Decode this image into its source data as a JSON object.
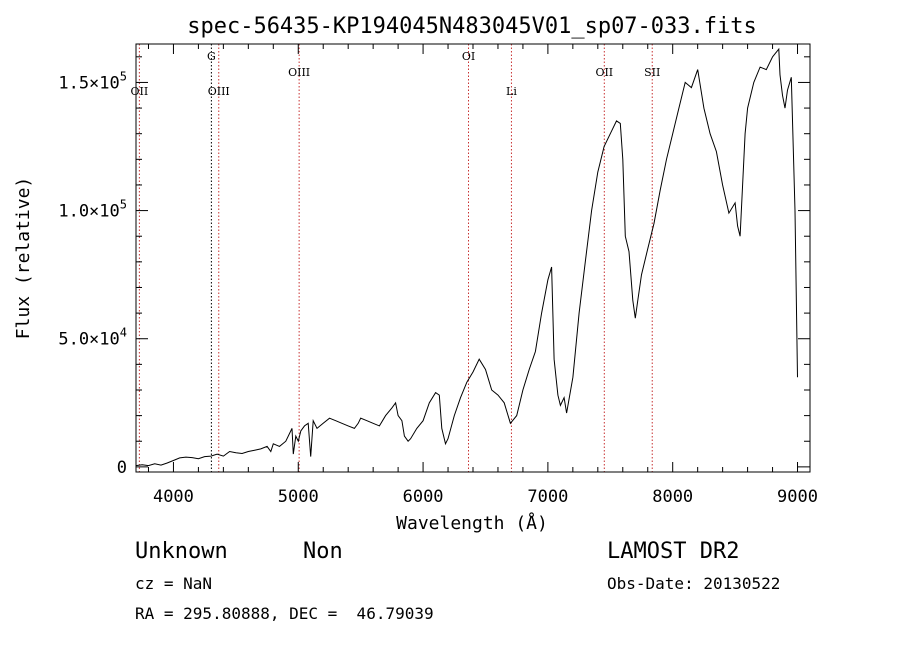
{
  "chart_data": {
    "type": "line",
    "title": "spec-56435-KP194045N483045V01_sp07-033.fits",
    "xlabel": "Wavelength (Å)",
    "ylabel": "Flux (relative)",
    "xlim": [
      3700,
      9100
    ],
    "ylim": [
      -2000,
      165000
    ],
    "x_ticks": [
      4000,
      5000,
      6000,
      7000,
      8000,
      9000
    ],
    "x_tick_labels": [
      "4000",
      "5000",
      "6000",
      "7000",
      "8000",
      "9000"
    ],
    "y_ticks": [
      0,
      50000,
      100000,
      150000
    ],
    "y_tick_labels": [
      {
        "base": "0",
        "exp": ""
      },
      {
        "base": "5.0×10",
        "exp": "4"
      },
      {
        "base": "1.0×10",
        "exp": "5"
      },
      {
        "base": "1.5×10",
        "exp": "5"
      }
    ],
    "grid": false,
    "series": [
      {
        "x": [
          3700,
          3750,
          3800,
          3850,
          3900,
          3950,
          4000,
          4050,
          4100,
          4150,
          4200,
          4250,
          4300,
          4350,
          4400,
          4450,
          4500,
          4550,
          4600,
          4650,
          4700,
          4750,
          4780,
          4800,
          4850,
          4900,
          4950,
          4960,
          4980,
          5000,
          5020,
          5050,
          5080,
          5100,
          5120,
          5150,
          5200,
          5250,
          5300,
          5350,
          5400,
          5450,
          5480,
          5500,
          5550,
          5600,
          5650,
          5700,
          5750,
          5780,
          5800,
          5830,
          5850,
          5880,
          5900,
          5950,
          6000,
          6050,
          6100,
          6130,
          6150,
          6180,
          6200,
          6250,
          6300,
          6350,
          6400,
          6450,
          6500,
          6550,
          6600,
          6650,
          6700,
          6750,
          6800,
          6850,
          6900,
          6950,
          7000,
          7030,
          7050,
          7080,
          7100,
          7130,
          7150,
          7200,
          7250,
          7300,
          7350,
          7400,
          7450,
          7500,
          7550,
          7580,
          7600,
          7620,
          7650,
          7680,
          7700,
          7720,
          7750,
          7800,
          7850,
          7900,
          7950,
          8000,
          8050,
          8100,
          8150,
          8200,
          8250,
          8300,
          8350,
          8400,
          8450,
          8500,
          8520,
          8540,
          8560,
          8580,
          8600,
          8650,
          8700,
          8750,
          8800,
          8850,
          8860,
          8880,
          8900,
          8920,
          8950,
          8980,
          9000
        ],
        "y": [
          500,
          800,
          500,
          1200,
          700,
          1500,
          2500,
          3500,
          3800,
          3600,
          3200,
          4000,
          4200,
          5000,
          4200,
          6000,
          5500,
          5200,
          6000,
          6500,
          7000,
          8000,
          6000,
          9000,
          8000,
          10000,
          15000,
          5000,
          12000,
          10000,
          14000,
          16000,
          17000,
          4000,
          18000,
          15000,
          17000,
          19000,
          18000,
          17000,
          16000,
          15000,
          17000,
          19000,
          18000,
          17000,
          16000,
          20000,
          23000,
          25000,
          20000,
          18000,
          12000,
          10000,
          11000,
          15000,
          18000,
          25000,
          29000,
          28000,
          15000,
          9000,
          11000,
          20000,
          27000,
          33000,
          37000,
          42000,
          38000,
          30000,
          28000,
          25000,
          17000,
          20000,
          30000,
          38000,
          45000,
          60000,
          73000,
          78000,
          42000,
          28000,
          24000,
          27000,
          21000,
          35000,
          60000,
          80000,
          100000,
          115000,
          125000,
          130000,
          135000,
          134000,
          120000,
          90000,
          84000,
          65000,
          58000,
          65000,
          75000,
          85000,
          95000,
          108000,
          120000,
          130000,
          140000,
          150000,
          148000,
          155000,
          140000,
          130000,
          123000,
          110000,
          99000,
          103000,
          94000,
          90000,
          110000,
          130000,
          140000,
          150000,
          156000,
          155000,
          160000,
          163000,
          153000,
          145000,
          140000,
          147000,
          152000,
          100000,
          35000
        ]
      }
    ],
    "line_markers": [
      {
        "label": "OII",
        "x": 3727,
        "color": "#c83232",
        "label_row": "low"
      },
      {
        "label": "G",
        "x": 4304,
        "color": "#000000",
        "label_row": "top"
      },
      {
        "label": "OIII",
        "x": 4363,
        "color": "#c83232",
        "label_row": "low"
      },
      {
        "label": "OIII",
        "x": 5007,
        "color": "#c83232",
        "label_row": "mid"
      },
      {
        "label": "OI",
        "x": 6364,
        "color": "#c83232",
        "label_row": "top"
      },
      {
        "label": "Li",
        "x": 6708,
        "color": "#c83232",
        "label_row": "low"
      },
      {
        "label": "OII",
        "x": 7452,
        "color": "#c83232",
        "label_row": "mid"
      },
      {
        "label": "SII",
        "x": 7836,
        "color": "#c83232",
        "label_row": "mid"
      }
    ]
  },
  "info": {
    "object_class": "Unknown",
    "subclass": "Non",
    "redshift": "cz = NaN",
    "coords": "RA = 295.80888, DEC =  46.79039",
    "survey": "LAMOST DR2",
    "obs_date": "Obs-Date: 20130522"
  }
}
